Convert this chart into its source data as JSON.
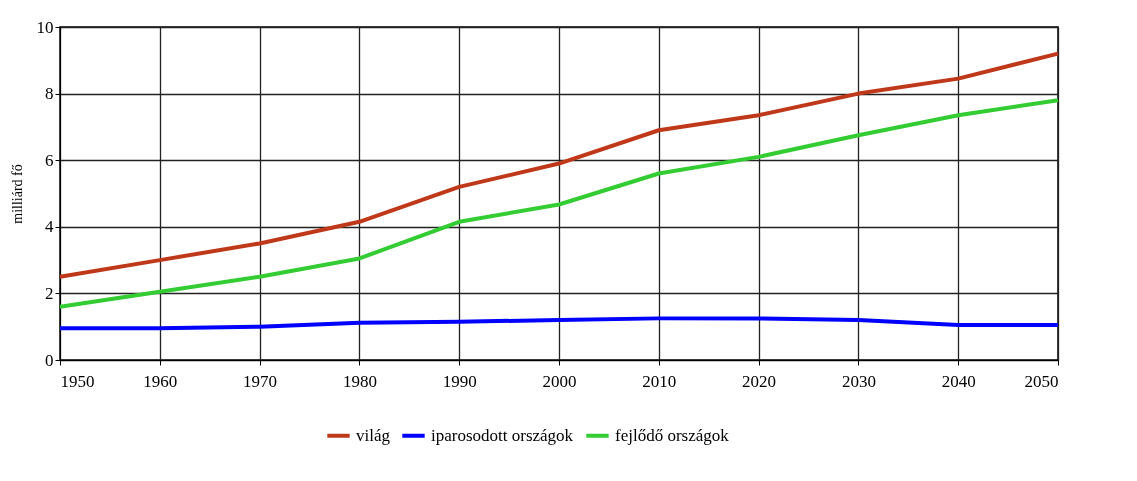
{
  "chart_data": {
    "type": "line",
    "ylabel": "milliárd fő",
    "x": [
      1950,
      1960,
      1970,
      1980,
      1990,
      2000,
      2010,
      2020,
      2030,
      2040,
      2050
    ],
    "series": [
      {
        "name": "világ",
        "color": "#c0381a",
        "values": [
          2.5,
          3.0,
          3.5,
          4.15,
          5.2,
          5.9,
          6.9,
          7.35,
          8.0,
          8.45,
          9.2
        ]
      },
      {
        "name": "iparosodott országok",
        "color": "#0000ff",
        "values": [
          0.95,
          0.95,
          1.0,
          1.12,
          1.15,
          1.2,
          1.25,
          1.25,
          1.2,
          1.05,
          1.05
        ]
      },
      {
        "name": "fejlődő országok",
        "color": "#33cc33",
        "values": [
          1.6,
          2.05,
          2.5,
          3.05,
          4.15,
          4.67,
          5.6,
          6.1,
          6.75,
          7.35,
          7.8
        ]
      }
    ],
    "xlim": [
      1950,
      2050
    ],
    "xticks": [
      1950,
      1960,
      1970,
      1980,
      1990,
      2000,
      2010,
      2020,
      2030,
      2040,
      2050
    ],
    "ylim": [
      0,
      10
    ],
    "yticks": [
      0,
      2,
      4,
      6,
      8,
      10
    ],
    "grid": true,
    "legend": "bottom",
    "marker": "none",
    "line_style": "solid"
  }
}
